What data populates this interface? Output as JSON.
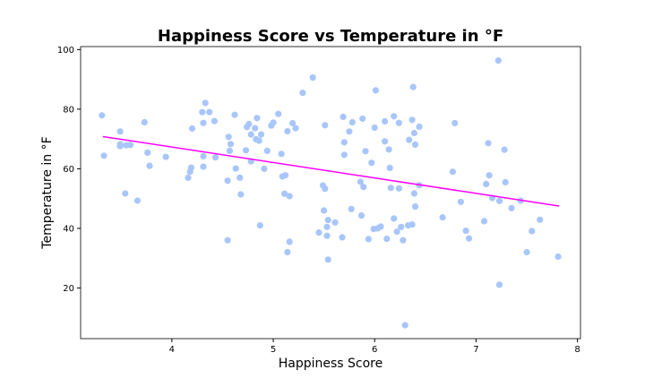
{
  "chart_data": {
    "type": "scatter",
    "title": "Happiness Score vs Temperature in °F",
    "xlabel": "Happiness Score",
    "ylabel": "Temperature in °F",
    "xlim": [
      3.1,
      8.03
    ],
    "ylim": [
      3,
      101
    ],
    "xticks": [
      4,
      5,
      6,
      7,
      8
    ],
    "yticks": [
      20,
      40,
      60,
      80,
      100
    ],
    "grid": false,
    "colors": {
      "points": "#a8c6fa",
      "trend": "#ff00ff",
      "axis": "#000000"
    },
    "trendline": {
      "x": [
        3.32,
        7.82
      ],
      "y": [
        70.8,
        47.5
      ]
    },
    "points": [
      [
        3.31,
        77.9
      ],
      [
        3.33,
        64.4
      ],
      [
        3.49,
        72.5
      ],
      [
        3.49,
        68.2
      ],
      [
        3.49,
        67.6
      ],
      [
        3.55,
        67.9
      ],
      [
        3.59,
        68.0
      ],
      [
        3.54,
        51.7
      ],
      [
        3.66,
        49.3
      ],
      [
        3.73,
        75.6
      ],
      [
        3.76,
        65.4
      ],
      [
        3.78,
        61.0
      ],
      [
        3.94,
        64.0
      ],
      [
        4.16,
        57.0
      ],
      [
        4.18,
        59.0
      ],
      [
        4.19,
        60.4
      ],
      [
        4.2,
        73.5
      ],
      [
        4.3,
        79.0
      ],
      [
        4.31,
        75.4
      ],
      [
        4.31,
        64.2
      ],
      [
        4.31,
        60.7
      ],
      [
        4.33,
        82.1
      ],
      [
        4.37,
        79.0
      ],
      [
        4.42,
        76.0
      ],
      [
        4.43,
        63.8
      ],
      [
        4.55,
        56.0
      ],
      [
        4.56,
        70.7
      ],
      [
        4.57,
        66.0
      ],
      [
        4.58,
        68.3
      ],
      [
        4.55,
        36.0
      ],
      [
        4.62,
        78.1
      ],
      [
        4.63,
        60.1
      ],
      [
        4.67,
        57.0
      ],
      [
        4.68,
        51.4
      ],
      [
        4.73,
        66.2
      ],
      [
        4.74,
        74.0
      ],
      [
        4.76,
        75.0
      ],
      [
        4.78,
        71.5
      ],
      [
        4.78,
        62.5
      ],
      [
        4.82,
        73.6
      ],
      [
        4.83,
        69.9
      ],
      [
        4.84,
        77.0
      ],
      [
        4.86,
        69.4
      ],
      [
        4.88,
        71.5
      ],
      [
        4.87,
        41.0
      ],
      [
        4.91,
        60.0
      ],
      [
        4.94,
        66.0
      ],
      [
        4.98,
        74.5
      ],
      [
        5.0,
        75.5
      ],
      [
        5.05,
        78.4
      ],
      [
        5.08,
        65.0
      ],
      [
        5.09,
        57.4
      ],
      [
        5.12,
        57.8
      ],
      [
        5.11,
        51.6
      ],
      [
        5.14,
        72.6
      ],
      [
        5.16,
        50.8
      ],
      [
        5.19,
        75.3
      ],
      [
        5.22,
        73.6
      ],
      [
        5.14,
        32.0
      ],
      [
        5.16,
        35.5
      ],
      [
        5.29,
        85.5
      ],
      [
        5.39,
        90.6
      ],
      [
        5.45,
        38.6
      ],
      [
        5.49,
        54.4
      ],
      [
        5.51,
        53.3
      ],
      [
        5.51,
        74.6
      ],
      [
        5.5,
        46.0
      ],
      [
        5.53,
        40.5
      ],
      [
        5.54,
        42.8
      ],
      [
        5.53,
        37.5
      ],
      [
        5.54,
        29.5
      ],
      [
        5.61,
        42.0
      ],
      [
        5.68,
        37.0
      ],
      [
        5.69,
        77.4
      ],
      [
        5.7,
        68.9
      ],
      [
        5.7,
        64.7
      ],
      [
        5.75,
        72.5
      ],
      [
        5.78,
        75.6
      ],
      [
        5.77,
        46.5
      ],
      [
        5.86,
        55.6
      ],
      [
        5.88,
        76.8
      ],
      [
        5.89,
        53.9
      ],
      [
        5.87,
        44.3
      ],
      [
        5.91,
        65.9
      ],
      [
        5.94,
        36.4
      ],
      [
        5.97,
        62.0
      ],
      [
        6.01,
        86.3
      ],
      [
        6.0,
        73.8
      ],
      [
        5.99,
        39.8
      ],
      [
        6.03,
        40.0
      ],
      [
        6.06,
        40.6
      ],
      [
        6.1,
        75.9
      ],
      [
        6.1,
        69.2
      ],
      [
        6.12,
        36.5
      ],
      [
        6.14,
        66.5
      ],
      [
        6.15,
        60.3
      ],
      [
        6.16,
        53.6
      ],
      [
        6.19,
        77.6
      ],
      [
        6.19,
        43.3
      ],
      [
        6.22,
        38.9
      ],
      [
        6.24,
        75.4
      ],
      [
        6.24,
        53.4
      ],
      [
        6.26,
        40.5
      ],
      [
        6.28,
        36.0
      ],
      [
        6.33,
        41.0
      ],
      [
        6.3,
        7.5
      ],
      [
        6.34,
        69.7
      ],
      [
        6.37,
        41.3
      ],
      [
        6.37,
        76.4
      ],
      [
        6.38,
        87.4
      ],
      [
        6.39,
        72.0
      ],
      [
        6.4,
        68.1
      ],
      [
        6.39,
        51.7
      ],
      [
        6.4,
        47.3
      ],
      [
        6.44,
        74.1
      ],
      [
        6.44,
        54.5
      ],
      [
        6.67,
        43.7
      ],
      [
        6.77,
        59.0
      ],
      [
        6.79,
        75.3
      ],
      [
        6.85,
        48.9
      ],
      [
        6.9,
        39.2
      ],
      [
        6.93,
        36.6
      ],
      [
        7.08,
        42.4
      ],
      [
        7.1,
        54.9
      ],
      [
        7.12,
        68.6
      ],
      [
        7.13,
        57.8
      ],
      [
        7.16,
        50.2
      ],
      [
        7.22,
        96.3
      ],
      [
        7.23,
        49.2
      ],
      [
        7.23,
        21.1
      ],
      [
        7.28,
        66.4
      ],
      [
        7.29,
        55.5
      ],
      [
        7.35,
        46.8
      ],
      [
        7.44,
        49.3
      ],
      [
        7.5,
        32.0
      ],
      [
        7.55,
        39.1
      ],
      [
        7.63,
        42.9
      ],
      [
        7.81,
        30.5
      ]
    ]
  }
}
